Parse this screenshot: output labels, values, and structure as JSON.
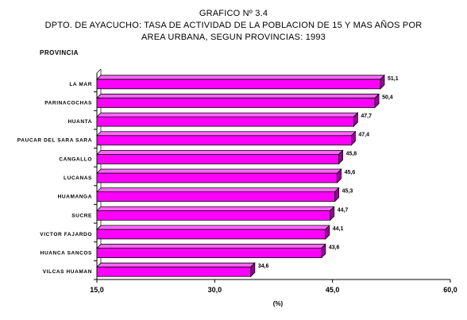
{
  "chart_data": {
    "type": "bar",
    "orientation": "horizontal",
    "title": [
      "GRAFICO Nº 3.4",
      "DPTO. DE AYACUCHO: TASA DE ACTIVIDAD DE LA POBLACION DE 15 Y MAS AÑOS POR",
      "AREA URBANA, SEGUN PROVINCIAS: 1993"
    ],
    "ylabel": "PROVINCIA",
    "xlabel": "(%)",
    "categories": [
      "LA MAR",
      "PARINACOCHAS",
      "HUANTA",
      "PAUCAR DEL SARA SARA",
      "CANGALLO",
      "LUCANAS",
      "HUAMANGA",
      "SUCRE",
      "VICTOR FAJARDO",
      "HUANCA SANCOS",
      "VILCAS HUAMAN"
    ],
    "values": [
      51.1,
      50.4,
      47.7,
      47.4,
      45.8,
      45.6,
      45.3,
      44.7,
      44.1,
      43.6,
      34.6
    ],
    "value_labels": [
      "51,1",
      "50,4",
      "47,7",
      "47,4",
      "45,8",
      "45,6",
      "45,3",
      "44,7",
      "44,1",
      "43,6",
      "34,6"
    ],
    "xlim": [
      15,
      60
    ],
    "xticks": [
      15,
      30,
      45,
      60
    ],
    "xtick_labels": [
      "15,0",
      "30,0",
      "45,0",
      "60,0"
    ],
    "grid": false,
    "legend": "none",
    "bar_style": "3d",
    "colors": {
      "bar_front": "#ff00ff",
      "bar_top": "#ff66ff",
      "bar_side": "#990099",
      "bar_edge": "#000000"
    }
  }
}
